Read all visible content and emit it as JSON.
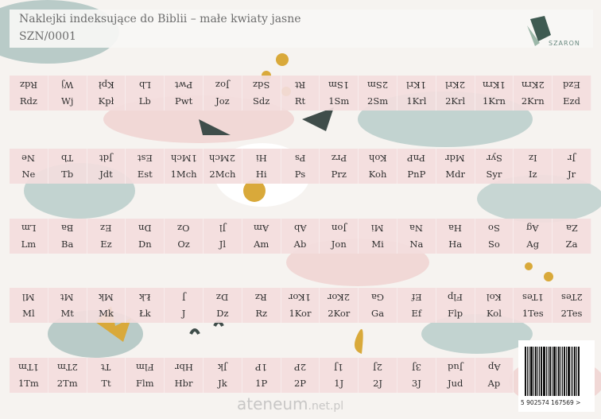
{
  "header": {
    "title": "Naklejki indeksujące do Biblii – małe kwiaty jasne",
    "code": "SZN/0001",
    "brand": "SZARON"
  },
  "rows": [
    [
      "Rdz",
      "Wj",
      "Kpł",
      "Lb",
      "Pwt",
      "Joz",
      "Sdz",
      "Rt",
      "1Sm",
      "2Sm",
      "1Krl",
      "2Krl",
      "1Krn",
      "2Krn",
      "Ezd"
    ],
    [
      "Ne",
      "Tb",
      "Jdt",
      "Est",
      "1Mch",
      "2Mch",
      "Hi",
      "Ps",
      "Prz",
      "Koh",
      "PnP",
      "Mdr",
      "Syr",
      "Iz",
      "Jr"
    ],
    [
      "Lm",
      "Ba",
      "Ez",
      "Dn",
      "Oz",
      "Jl",
      "Am",
      "Ab",
      "Jon",
      "Mi",
      "Na",
      "Ha",
      "So",
      "Ag",
      "Za"
    ],
    [
      "Ml",
      "Mt",
      "Mk",
      "Łk",
      "J",
      "Dz",
      "Rz",
      "1Kor",
      "2Kor",
      "Ga",
      "Ef",
      "Flp",
      "Kol",
      "1Tes",
      "2Tes"
    ],
    [
      "1Tm",
      "2Tm",
      "Tt",
      "Flm",
      "Hbr",
      "Jk",
      "1P",
      "2P",
      "1J",
      "2J",
      "3J",
      "Jud",
      "Ap"
    ]
  ],
  "barcode": {
    "number": "5 902574 167569 >"
  },
  "watermark": {
    "main": "ateneum",
    "suffix": ".net.pl"
  },
  "colors": {
    "sticker": "#f3dddd",
    "teal": "#9fb8b5",
    "mustard": "#d9a93a",
    "dark": "#3f4d4a"
  }
}
